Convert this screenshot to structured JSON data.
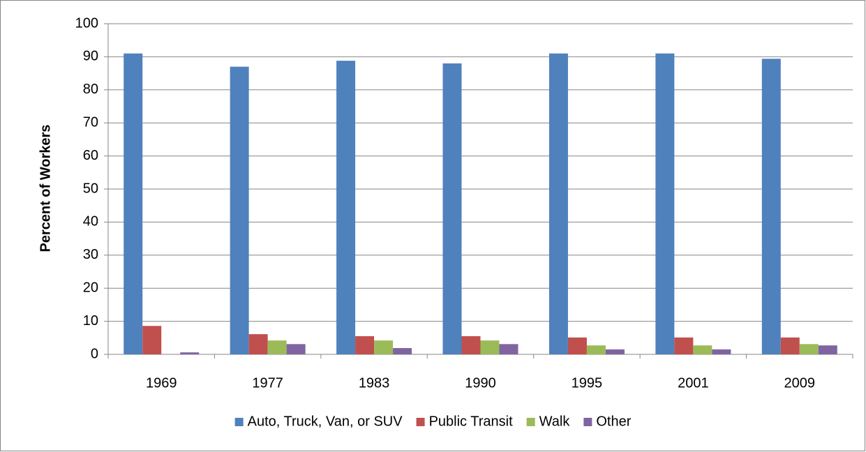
{
  "chart_data": {
    "type": "bar",
    "y_label": "Percent of Workers",
    "categories": [
      "1969",
      "1977",
      "1983",
      "1990",
      "1995",
      "2001",
      "2009"
    ],
    "series": [
      {
        "name": "Auto, Truck, Van, or SUV",
        "color": "#4f81bd",
        "values": [
          91,
          87,
          88.8,
          88,
          91,
          91,
          89.4
        ]
      },
      {
        "name": "Public Transit",
        "color": "#c0504d",
        "values": [
          8.6,
          6.1,
          5.5,
          5.5,
          5.1,
          5.1,
          5.1
        ]
      },
      {
        "name": "Walk",
        "color": "#9bbb59",
        "values": [
          null,
          4.2,
          4.2,
          4.2,
          2.7,
          2.7,
          3.1
        ]
      },
      {
        "name": "Other",
        "color": "#8064a2",
        "values": [
          0.6,
          3.1,
          1.9,
          3.1,
          1.5,
          1.5,
          2.7
        ]
      }
    ],
    "ylim": [
      0,
      100
    ],
    "yticks": [
      0,
      10,
      20,
      30,
      40,
      50,
      60,
      70,
      80,
      90,
      100
    ],
    "grid": true,
    "legend": "bottom"
  }
}
